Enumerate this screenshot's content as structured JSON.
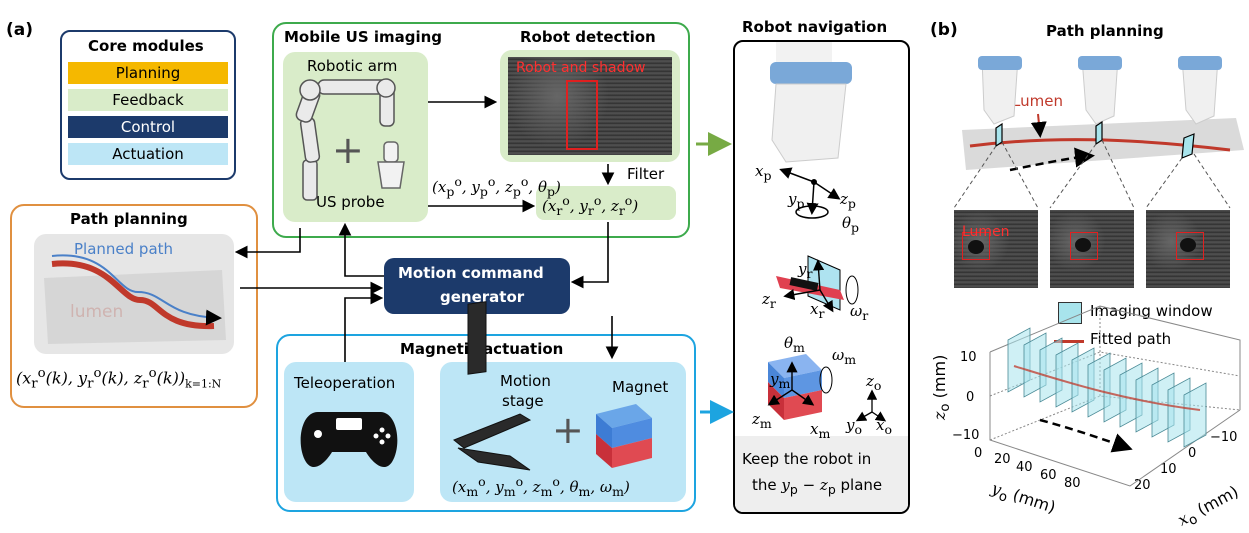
{
  "panel_a_label": "(a)",
  "panel_b_label": "(b)",
  "core_modules": {
    "title": "Core modules",
    "items": [
      {
        "label": "Planning",
        "color": "#f5b800",
        "text_color": "#000000"
      },
      {
        "label": "Feedback",
        "color": "#d9ecc9",
        "text_color": "#000000"
      },
      {
        "label": "Control",
        "color": "#1c3a6b",
        "text_color": "#ffffff"
      },
      {
        "label": "Actuation",
        "color": "#bde6f6",
        "text_color": "#000000"
      }
    ]
  },
  "mobile_us": {
    "title": "Mobile US imaging",
    "robotic_arm": "Robotic arm",
    "us_probe": "US probe",
    "plus": "+",
    "probe_pose": "(x_p^o, y_p^o, z_p^o, θ_p)"
  },
  "robot_detection": {
    "title": "Robot detection",
    "overlay": "Robot and shadow",
    "filter": "Filter",
    "robot_pose": "(x_r^o, y_r^o, z_r^o)"
  },
  "path_planning_a": {
    "title": "Path planning",
    "planned_path": "Planned path",
    "lumen": "lumen",
    "sequence": "(x_r^o(k), y_r^o(k), z_r^o(k))_{k=1:N}"
  },
  "motion_command": {
    "line1": "Motion command",
    "line2": "generator"
  },
  "magnetic_actuation": {
    "title": "Magnetic actuation",
    "teleoperation": "Teleoperation",
    "motion_stage_1": "Motion",
    "motion_stage_2": "stage",
    "plus": "+",
    "magnet": "Magnet",
    "magnet_pose": "(x_m^o, y_m^o, z_m^o, θ_m, ω_m)"
  },
  "robot_navigation": {
    "title": "Robot navigation",
    "caption_1": "Keep the robot in",
    "caption_2": "the y_p − z_p plane",
    "axes": {
      "xp": "x",
      "yp": "y",
      "zp": "z",
      "thetap": "θ",
      "p": "p",
      "yr": "y",
      "zr": "z",
      "xr": "x",
      "omegar": "ω",
      "r": "r",
      "thetam": "θ",
      "omegam": "ω",
      "ym": "y",
      "zm": "z",
      "xm": "x",
      "m": "m",
      "zo": "z",
      "yo": "y",
      "xo": "x",
      "o": "o"
    }
  },
  "panel_b": {
    "title": "Path planning",
    "lumen": "Lumen",
    "us_lumen": "Lumen",
    "legend": [
      {
        "label": "Imaging window",
        "color": "#a8e4ec"
      },
      {
        "label": "Fitted path",
        "color": "#c0392b"
      }
    ],
    "z_label": "z_o (mm)",
    "y_label": "y_o (mm)",
    "x_label": "x_o (mm)",
    "z_ticks": [
      "10",
      "0",
      "−10"
    ],
    "y_ticks": [
      "0",
      "20",
      "40",
      "60",
      "80"
    ],
    "x_ticks": [
      "−10",
      "0",
      "10",
      "20"
    ]
  }
}
